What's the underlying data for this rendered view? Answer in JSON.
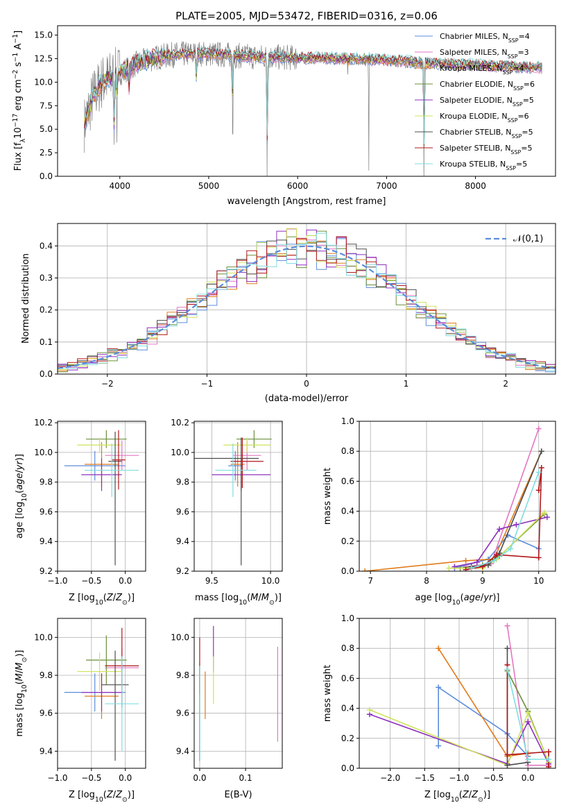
{
  "figure_title": "PLATE=2005, MJD=53472, FIBERID=0316, z=0.06",
  "colors": [
    "#5b8cdb",
    "#e377c2",
    "#e07b1a",
    "#6a8f3a",
    "#8e2fbe",
    "#cfe35a",
    "#4d4d4d",
    "#b0181c",
    "#7fdde0"
  ],
  "spectrum_color": "#808080",
  "chart_data": [
    {
      "id": "spectrum",
      "type": "line",
      "title": "PLATE=2005, MJD=53472, FIBERID=0316, z=0.06",
      "xlabel": "wavelength [Angstrom, rest frame]",
      "ylabel": "Flux [f$_\\lambda$10$^{-17}$ erg cm$^{-2}$ s$^{-1}$ A$^{-1}$]",
      "xlim": [
        3300,
        8900
      ],
      "ylim": [
        0,
        16
      ],
      "xticks": [
        "4000",
        "5000",
        "6000",
        "7000",
        "8000"
      ],
      "xtick_values": [
        4000,
        5000,
        6000,
        7000,
        8000
      ],
      "yticks": [
        "0.0",
        "2.5",
        "5.0",
        "7.5",
        "10.0",
        "12.5",
        "15.0"
      ],
      "ytick_values": [
        0,
        2.5,
        5,
        7.5,
        10,
        12.5,
        15
      ],
      "continuum": {
        "x": [
          3600,
          3700,
          3800,
          3900,
          4000,
          4200,
          4400,
          4600,
          4800,
          5000,
          5200,
          5500,
          6000,
          6500,
          7000,
          7200,
          7500,
          8000,
          8500,
          8800
        ],
        "y": [
          5.5,
          8.5,
          10.0,
          10.5,
          11.0,
          12.0,
          12.6,
          12.9,
          13.0,
          13.0,
          12.9,
          12.7,
          12.6,
          12.5,
          12.4,
          12.2,
          12.0,
          11.8,
          11.6,
          11.5
        ]
      },
      "legend": [
        {
          "name": "Chabrier MILES, N$_{SSP}$=4"
        },
        {
          "name": "Salpeter MILES, N$_{SSP}$=3"
        },
        {
          "name": "Kroupa MILES, N$_{SSP}$=4"
        },
        {
          "name": "Chabrier ELODIE, N$_{SSP}$=6"
        },
        {
          "name": "Salpeter ELODIE, N$_{SSP}$=5"
        },
        {
          "name": "Kroupa ELODIE, N$_{SSP}$=6"
        },
        {
          "name": "Chabrier STELIB, N$_{SSP}$=5"
        },
        {
          "name": "Salpeter STELIB, N$_{SSP}$=5"
        },
        {
          "name": "Kroupa STELIB, N$_{SSP}$=5"
        }
      ],
      "legend_labels": [
        [
          "Chabrier MILES, N",
          "SSP",
          "=4"
        ],
        [
          "Salpeter MILES, N",
          "SSP",
          "=3"
        ],
        [
          "Kroupa MILES, N",
          "SSP",
          "=4"
        ],
        [
          "Chabrier ELODIE, N",
          "SSP",
          "=6"
        ],
        [
          "Salpeter ELODIE, N",
          "SSP",
          "=5"
        ],
        [
          "Kroupa ELODIE, N",
          "SSP",
          "=6"
        ],
        [
          "Chabrier STELIB, N",
          "SSP",
          "=5"
        ],
        [
          "Salpeter STELIB, N",
          "SSP",
          "=5"
        ],
        [
          "Kroupa STELIB, N",
          "SSP",
          "=5"
        ]
      ],
      "legend_position": "upper-right"
    },
    {
      "id": "residuals",
      "type": "histogram",
      "xlabel": "(data-model)/error",
      "ylabel": "Normed distribution",
      "xlim": [
        -2.5,
        2.5
      ],
      "ylim": [
        0,
        0.47
      ],
      "xticks": [
        "−2",
        "−1",
        "0",
        "1",
        "2"
      ],
      "xtick_values": [
        -2,
        -1,
        0,
        1,
        2
      ],
      "yticks": [
        "0.0",
        "0.1",
        "0.2",
        "0.3",
        "0.4"
      ],
      "ytick_values": [
        0,
        0.1,
        0.2,
        0.3,
        0.4
      ],
      "bin_width": 0.1,
      "gaussian": {
        "name": "𝒩(0,1)",
        "mu": 0,
        "sigma": 1
      },
      "legend_position": "upper-right"
    },
    {
      "id": "age-vs-Z",
      "type": "errorbar",
      "xlabel": "Z [log$_{10}$(Z/Z$_\\odot$)]",
      "ylabel": "age  [log$_{10}$(age/yr)]",
      "xlim": [
        -1.0,
        0.3
      ],
      "ylim": [
        9.2,
        10.21
      ],
      "xticks": [
        "−1.0",
        "−0.5",
        "0.0"
      ],
      "xtick_values": [
        -1.0,
        -0.5,
        0.0
      ],
      "yticks": [
        "9.2",
        "9.4",
        "9.6",
        "9.8",
        "10.0",
        "10.2"
      ],
      "ytick_values": [
        9.2,
        9.4,
        9.6,
        9.8,
        10.0,
        10.2
      ],
      "points": [
        {
          "x": -0.45,
          "xerr": [
            0.45,
            0.45
          ],
          "y": 9.91,
          "yerr": [
            0.1,
            0.1
          ]
        },
        {
          "x": -0.05,
          "xerr": [
            0.25,
            0.25
          ],
          "y": 9.98,
          "yerr": [
            0.1,
            0.1
          ]
        },
        {
          "x": -0.35,
          "xerr": [
            0.25,
            0.25
          ],
          "y": 9.92,
          "yerr": [
            0.15,
            0.15
          ]
        },
        {
          "x": -0.28,
          "xerr": [
            0.3,
            0.3
          ],
          "y": 10.09,
          "yerr": [
            0.06,
            0.06
          ]
        },
        {
          "x": -0.35,
          "xerr": [
            0.3,
            0.3
          ],
          "y": 9.85,
          "yerr": [
            0.11,
            0.11
          ]
        },
        {
          "x": -0.38,
          "xerr": [
            0.33,
            0.33
          ],
          "y": 10.05,
          "yerr": [
            0.05,
            0.05
          ]
        },
        {
          "x": -0.15,
          "xerr": [
            0.1,
            0.1
          ],
          "y": 9.94,
          "yerr": [
            0.7,
            0.2
          ]
        },
        {
          "x": -0.1,
          "xerr": [
            0.1,
            0.1
          ],
          "y": 9.95,
          "yerr": [
            0.2,
            0.2
          ]
        },
        {
          "x": -0.2,
          "xerr": [
            0.4,
            0.4
          ],
          "y": 9.88,
          "yerr": [
            0.18,
            0.18
          ]
        }
      ]
    },
    {
      "id": "age-vs-mass",
      "type": "errorbar",
      "xlabel": "mass [log$_{10}$(M/M$_\\odot$)]",
      "ylabel": "",
      "xlim": [
        9.35,
        10.1
      ],
      "ylim": [
        9.2,
        10.21
      ],
      "xticks": [
        "9.5",
        "10.0"
      ],
      "xtick_values": [
        9.5,
        10.0
      ],
      "yticks": [
        "9.2",
        "9.4",
        "9.6",
        "9.8",
        "10.0",
        "10.2"
      ],
      "ytick_values": [
        9.2,
        9.4,
        9.6,
        9.8,
        10.0,
        10.2
      ],
      "points": [
        {
          "x": 9.7,
          "xerr": [
            0.06,
            0.06
          ],
          "y": 9.91,
          "yerr": [
            0.1,
            0.1
          ]
        },
        {
          "x": 9.8,
          "xerr": [
            0.12,
            0.12
          ],
          "y": 9.98,
          "yerr": [
            0.1,
            0.1
          ]
        },
        {
          "x": 9.72,
          "xerr": [
            0.06,
            0.06
          ],
          "y": 9.92,
          "yerr": [
            0.15,
            0.15
          ]
        },
        {
          "x": 9.86,
          "xerr": [
            0.15,
            0.15
          ],
          "y": 10.09,
          "yerr": [
            0.06,
            0.06
          ]
        },
        {
          "x": 9.75,
          "xerr": [
            0.25,
            0.25
          ],
          "y": 9.85,
          "yerr": [
            0.11,
            0.11
          ]
        },
        {
          "x": 9.8,
          "xerr": [
            0.2,
            0.2
          ],
          "y": 10.05,
          "yerr": [
            0.05,
            0.05
          ]
        },
        {
          "x": 9.75,
          "xerr": [
            0.4,
            0.15
          ],
          "y": 9.96,
          "yerr": [
            0.72,
            0.14
          ]
        },
        {
          "x": 9.76,
          "xerr": [
            0.1,
            0.18
          ],
          "y": 9.94,
          "yerr": [
            0.18,
            0.16
          ]
        },
        {
          "x": 9.68,
          "xerr": [
            0.15,
            0.2
          ],
          "y": 9.88,
          "yerr": [
            0.18,
            0.18
          ]
        }
      ]
    },
    {
      "id": "massweight-vs-age",
      "type": "line",
      "xlabel": "age  [log$_{10}$(age/yr)]",
      "ylabel": "mass weight",
      "xlim": [
        6.8,
        10.3
      ],
      "ylim": [
        0,
        1.0
      ],
      "xticks": [
        "7",
        "8",
        "9",
        "10"
      ],
      "xtick_values": [
        7,
        8,
        9,
        10
      ],
      "yticks": [
        "0.0",
        "0.2",
        "0.4",
        "0.6",
        "0.8",
        "1.0"
      ],
      "ytick_values": [
        0,
        0.2,
        0.4,
        0.6,
        0.8,
        1.0
      ],
      "series": [
        {
          "x": [
            8.5,
            9.1,
            9.45,
            10.0
          ],
          "y": [
            0.02,
            0.08,
            0.24,
            0.15
          ]
        },
        {
          "x": [
            8.7,
            9.15,
            10.0
          ],
          "y": [
            0.03,
            0.05,
            0.95
          ]
        },
        {
          "x": [
            6.9,
            8.7,
            9.2,
            10.05
          ],
          "y": [
            0.0,
            0.07,
            0.08,
            0.8
          ]
        },
        {
          "x": [
            8.6,
            9.0,
            9.3,
            10.1
          ],
          "y": [
            0.02,
            0.04,
            0.1,
            0.38
          ]
        },
        {
          "x": [
            8.5,
            8.9,
            9.3,
            9.6,
            10.15
          ],
          "y": [
            0.03,
            0.06,
            0.28,
            0.31,
            0.36
          ]
        },
        {
          "x": [
            8.4,
            9.0,
            9.25,
            10.1
          ],
          "y": [
            0.02,
            0.02,
            0.08,
            0.39
          ]
        },
        {
          "x": [
            8.8,
            9.1,
            9.3,
            10.05
          ],
          "y": [
            0.03,
            0.04,
            0.12,
            0.8
          ]
        },
        {
          "x": [
            8.7,
            9.0,
            9.25,
            10.0,
            10.05,
            10.0
          ],
          "y": [
            0.01,
            0.03,
            0.11,
            0.09,
            0.69,
            0.54
          ]
        },
        {
          "x": [
            8.8,
            9.2,
            9.5,
            10.0
          ],
          "y": [
            0.02,
            0.07,
            0.15,
            0.66
          ]
        }
      ]
    },
    {
      "id": "mass-vs-Z",
      "type": "errorbar",
      "xlabel": "Z [log$_{10}$(Z/Z$_\\odot$)]",
      "ylabel": "mass [log$_{10}$(M/M$_\\odot$)]",
      "xlim": [
        -1.0,
        0.3
      ],
      "ylim": [
        9.31,
        10.1
      ],
      "xticks": [
        "−1.0",
        "−0.5",
        "0.0"
      ],
      "xtick_values": [
        -1.0,
        -0.5,
        0.0
      ],
      "yticks": [
        "9.4",
        "9.6",
        "9.8",
        "10.0"
      ],
      "ytick_values": [
        9.4,
        9.6,
        9.8,
        10.0
      ],
      "points": [
        {
          "x": -0.45,
          "xerr": [
            0.45,
            0.45
          ],
          "y": 9.71,
          "yerr": [
            0.1,
            0.1
          ]
        },
        {
          "x": -0.05,
          "xerr": [
            0.25,
            0.25
          ],
          "y": 9.84,
          "yerr": [
            0.1,
            0.1
          ]
        },
        {
          "x": -0.35,
          "xerr": [
            0.25,
            0.25
          ],
          "y": 9.69,
          "yerr": [
            0.12,
            0.12
          ]
        },
        {
          "x": -0.28,
          "xerr": [
            0.3,
            0.3
          ],
          "y": 9.88,
          "yerr": [
            0.13,
            0.13
          ]
        },
        {
          "x": -0.35,
          "xerr": [
            0.3,
            0.3
          ],
          "y": 9.71,
          "yerr": [
            0.1,
            0.1
          ]
        },
        {
          "x": -0.38,
          "xerr": [
            0.33,
            0.33
          ],
          "y": 9.82,
          "yerr": [
            0.1,
            0.1
          ]
        },
        {
          "x": -0.15,
          "xerr": [
            0.2,
            0.2
          ],
          "y": 9.75,
          "yerr": [
            0.4,
            0.18
          ]
        },
        {
          "x": -0.05,
          "xerr": [
            0.25,
            0.25
          ],
          "y": 9.85,
          "yerr": [
            0.22,
            0.2
          ]
        },
        {
          "x": -0.05,
          "xerr": [
            0.25,
            0.25
          ],
          "y": 9.65,
          "yerr": [
            0.25,
            0.25
          ]
        }
      ]
    },
    {
      "id": "mass-vs-ebv",
      "type": "errorbar",
      "xlabel": "E(B-V)",
      "ylabel": "",
      "xlim": [
        -0.012,
        0.18
      ],
      "ylim": [
        9.31,
        10.1
      ],
      "xticks": [
        "0.0",
        "0.1"
      ],
      "xtick_values": [
        0.0,
        0.1
      ],
      "yticks": [
        "9.4",
        "9.6",
        "9.8",
        "10.0"
      ],
      "ytick_values": [
        9.4,
        9.6,
        9.8,
        10.0
      ],
      "points": [
        {
          "x": 0.0,
          "y": 9.72,
          "yerr": [
            0.37,
            0.15
          ]
        },
        {
          "x": 0.17,
          "y": 9.7,
          "yerr": [
            0.25,
            0.25
          ]
        },
        {
          "x": 0.012,
          "y": 9.72,
          "yerr": [
            0.15,
            0.1
          ]
        },
        {
          "x": 0.0,
          "y": 9.75,
          "yerr": [
            0.4,
            0.1
          ]
        },
        {
          "x": 0.03,
          "y": 9.92,
          "yerr": [
            0.1,
            0.14
          ]
        },
        {
          "x": 0.03,
          "y": 9.8,
          "yerr": [
            0.15,
            0.1
          ]
        },
        {
          "x": 0.0,
          "y": 9.7,
          "yerr": [
            0.35,
            0.15
          ]
        },
        {
          "x": 0.0,
          "y": 9.85,
          "yerr": [
            0.15,
            0.15
          ]
        },
        {
          "x": 0.0,
          "y": 9.6,
          "yerr": [
            0.25,
            0.25
          ]
        }
      ]
    },
    {
      "id": "massweight-vs-Z",
      "type": "line",
      "xlabel": "Z [log$_{10}$(Z/Z$_\\odot$)]",
      "ylabel": "mass weight",
      "xlim": [
        -2.45,
        0.4
      ],
      "ylim": [
        0,
        1.0
      ],
      "xticks": [
        "−2.0",
        "−1.5",
        "−1.0",
        "−0.5",
        "0.0"
      ],
      "xtick_values": [
        -2.0,
        -1.5,
        -1.0,
        -0.5,
        0.0
      ],
      "yticks": [
        "0.0",
        "0.2",
        "0.4",
        "0.6",
        "0.8",
        "1.0"
      ],
      "ytick_values": [
        0,
        0.2,
        0.4,
        0.6,
        0.8,
        1.0
      ],
      "series": [
        {
          "x": [
            -1.3,
            -1.3,
            -0.3,
            0.0
          ],
          "y": [
            0.15,
            0.54,
            0.23,
            0.08
          ]
        },
        {
          "x": [
            -0.3,
            0.0,
            0.3
          ],
          "y": [
            0.95,
            0.02,
            0.02
          ]
        },
        {
          "x": [
            -1.3,
            -0.3,
            0.0
          ],
          "y": [
            0.8,
            0.08,
            0.1
          ]
        },
        {
          "x": [
            -0.3,
            0.0,
            0.3
          ],
          "y": [
            0.65,
            0.38,
            0.04
          ]
        },
        {
          "x": [
            -2.3,
            -0.3,
            0.0,
            0.3
          ],
          "y": [
            0.36,
            0.03,
            0.31,
            0.03
          ]
        },
        {
          "x": [
            -2.3,
            -0.3,
            0.0,
            0.3
          ],
          "y": [
            0.39,
            0.02,
            0.37,
            0.04
          ]
        },
        {
          "x": [
            -0.3,
            -0.3,
            0.0
          ],
          "y": [
            0.8,
            0.02,
            0.04
          ]
        },
        {
          "x": [
            -0.3,
            -0.3,
            0.3,
            0.3
          ],
          "y": [
            0.69,
            0.09,
            0.11,
            0.01
          ]
        },
        {
          "x": [
            -0.3,
            0.0,
            0.3
          ],
          "y": [
            0.66,
            0.06,
            0.06
          ]
        }
      ]
    }
  ]
}
